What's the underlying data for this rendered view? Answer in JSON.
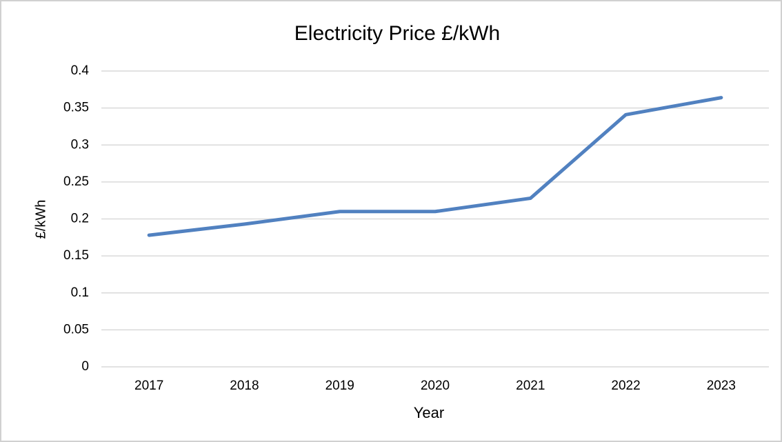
{
  "chart_data": {
    "type": "line",
    "title": "Electricity Price £/kWh",
    "x_label": "Year",
    "y_label": "£/kWh",
    "categories": [
      "2017",
      "2018",
      "2019",
      "2020",
      "2021",
      "2022",
      "2023"
    ],
    "series": [
      {
        "name": "Electricity Price",
        "color": "#5181c0",
        "values": [
          0.178,
          0.193,
          0.21,
          0.21,
          0.228,
          0.341,
          0.364
        ]
      }
    ],
    "ylim": [
      0,
      0.4
    ],
    "yticks": [
      0,
      0.05,
      0.1,
      0.15,
      0.2,
      0.25,
      0.3,
      0.35,
      0.4
    ],
    "grid": true
  }
}
